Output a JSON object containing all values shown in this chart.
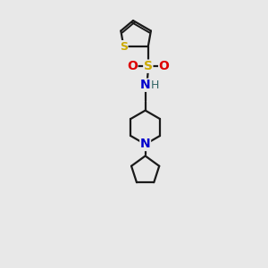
{
  "background_color": "#e8e8e8",
  "line_color": "#1a1a1a",
  "S_color": "#ccaa00",
  "O_color": "#dd0000",
  "N_color": "#0000cc",
  "H_color": "#336666",
  "line_width": 1.6,
  "figsize": [
    3.0,
    3.0
  ],
  "dpi": 100,
  "xlim": [
    0,
    10
  ],
  "ylim": [
    0,
    14
  ]
}
